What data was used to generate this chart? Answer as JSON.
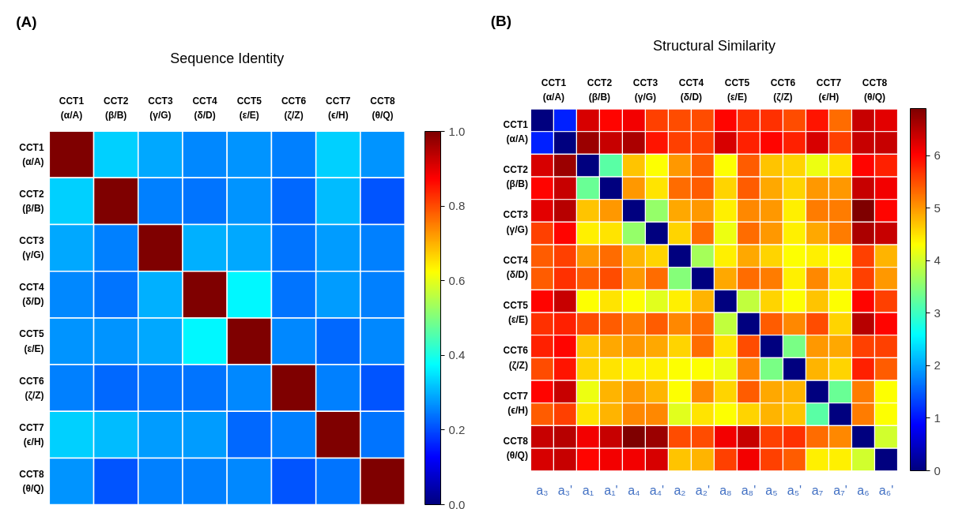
{
  "chart_data": [
    {
      "type": "heatmap",
      "title": "Sequence Identity",
      "annotations": [
        "(A)"
      ],
      "categories": [
        "CCT1\n(α/A)",
        "CCT2\n(β/B)",
        "CCT3\n(γ/G)",
        "CCT4\n(δ/D)",
        "CCT5\n(ε/E)",
        "CCT6\n(ζ/Z)",
        "CCT7\n(ϵ/H)",
        "CCT8\n(θ/Q)"
      ],
      "y_categories": [
        "CCT1\n(α/A)",
        "CCT2\n(β/B)",
        "CCT3\n(γ/G)",
        "CCT4\n(δ/D)",
        "CCT5\n(ε/E)",
        "CCT6\n(ζ/Z)",
        "CCT7\n(ϵ/H)",
        "CCT8\n(θ/Q)"
      ],
      "cells": [
        [
          1.0,
          0.33,
          0.29,
          0.26,
          0.27,
          0.25,
          0.33,
          0.27
        ],
        [
          0.33,
          1.0,
          0.25,
          0.24,
          0.27,
          0.23,
          0.31,
          0.21
        ],
        [
          0.29,
          0.25,
          1.0,
          0.3,
          0.29,
          0.24,
          0.28,
          0.25
        ],
        [
          0.26,
          0.24,
          0.3,
          1.0,
          0.37,
          0.24,
          0.28,
          0.25
        ],
        [
          0.27,
          0.27,
          0.29,
          0.37,
          1.0,
          0.26,
          0.23,
          0.26
        ],
        [
          0.25,
          0.23,
          0.24,
          0.24,
          0.26,
          1.0,
          0.25,
          0.21
        ],
        [
          0.33,
          0.31,
          0.28,
          0.28,
          0.23,
          0.25,
          1.0,
          0.24
        ],
        [
          0.27,
          0.21,
          0.25,
          0.25,
          0.26,
          0.21,
          0.24,
          1.0
        ]
      ],
      "clim": [
        0,
        1
      ],
      "cticks": [
        {
          "value": 0,
          "label": "0.0"
        },
        {
          "value": 0.2,
          "label": "0.2"
        },
        {
          "value": 0.4,
          "label": "0.4"
        },
        {
          "value": 0.6,
          "label": "0.6"
        },
        {
          "value": 0.8,
          "label": "0.8"
        },
        {
          "value": 1,
          "label": "1.0"
        }
      ]
    },
    {
      "type": "heatmap",
      "title": "Structural Similarity",
      "annotations": [
        "(B)",
        "CCT1\n(α/A)",
        "CCT2\n(β/B)",
        "CCT3\n(γ/G)",
        "CCT4\n(δ/D)",
        "CCT5\n(ε/E)",
        "CCT6\n(ζ/Z)",
        "CCT7\n(ϵ/H)",
        "CCT8\n(θ/Q)",
        "CCT1\n(α/A)",
        "CCT2\n(β/B)",
        "CCT3\n(γ/G)",
        "CCT4\n(δ/D)",
        "CCT5\n(ε/E)",
        "CCT6\n(ζ/Z)",
        "CCT7\n(ϵ/H)",
        "CCT8\n(θ/Q)"
      ],
      "categories": [
        "a₃",
        "a₃'",
        "a₁",
        "a₁'",
        "a₄",
        "a₄'",
        "a₂",
        "a₂'",
        "a₈",
        "a₈'",
        "a₅",
        "a₅'",
        "a₇",
        "a₇'",
        "a₆",
        "a₆'"
      ],
      "y_categories": [
        null,
        null,
        null,
        null,
        null,
        null,
        null,
        null,
        null,
        null,
        null,
        null,
        null,
        null,
        null,
        null
      ],
      "cells": [
        [
          0,
          1.1,
          6.3,
          6.0,
          6.1,
          5.6,
          5.5,
          5.5,
          6.0,
          5.7,
          5.7,
          5.5,
          5.9,
          5.3,
          6.4,
          6.2
        ],
        [
          1.1,
          0,
          6.7,
          6.4,
          6.6,
          5.9,
          5.6,
          5.6,
          6.3,
          5.8,
          6.0,
          5.8,
          6.3,
          5.6,
          6.4,
          6.4
        ],
        [
          6.3,
          6.7,
          0,
          3.2,
          4.7,
          4.3,
          5.0,
          5.4,
          4.3,
          5.4,
          4.7,
          4.6,
          4.2,
          4.5,
          6.0,
          5.8
        ],
        [
          6.0,
          6.4,
          3.3,
          0,
          5.0,
          4.5,
          5.3,
          5.4,
          4.6,
          5.4,
          4.9,
          4.6,
          5.0,
          5.0,
          6.4,
          6.1
        ],
        [
          6.2,
          6.5,
          4.7,
          5.0,
          0,
          3.6,
          4.9,
          5.0,
          4.4,
          5.1,
          5.0,
          4.4,
          5.2,
          5.2,
          6.9,
          6.0
        ],
        [
          5.6,
          6.0,
          4.4,
          4.5,
          3.6,
          0,
          4.6,
          5.3,
          4.2,
          5.3,
          5.0,
          4.4,
          4.9,
          5.2,
          6.6,
          6.4
        ],
        [
          5.4,
          5.6,
          5.0,
          5.3,
          4.8,
          4.6,
          0,
          3.7,
          4.4,
          4.9,
          4.6,
          4.3,
          4.4,
          4.3,
          5.6,
          4.8
        ],
        [
          5.4,
          5.7,
          5.4,
          5.5,
          5.0,
          5.3,
          3.5,
          0,
          4.9,
          5.3,
          5.2,
          4.4,
          5.1,
          4.5,
          5.6,
          5.0
        ],
        [
          6.0,
          6.4,
          4.3,
          4.5,
          4.3,
          4.1,
          4.4,
          4.8,
          0,
          3.9,
          4.6,
          4.3,
          4.7,
          4.3,
          6.0,
          5.6
        ],
        [
          5.7,
          5.8,
          5.5,
          5.4,
          5.2,
          5.4,
          5.1,
          5.3,
          3.9,
          0,
          5.4,
          5.1,
          5.5,
          4.6,
          6.5,
          6.0
        ],
        [
          5.8,
          6.0,
          4.7,
          4.9,
          5.0,
          4.9,
          4.6,
          5.3,
          4.5,
          5.5,
          0,
          3.4,
          5.0,
          4.9,
          5.6,
          5.6
        ],
        [
          5.5,
          5.9,
          4.6,
          4.5,
          4.4,
          4.4,
          4.3,
          4.3,
          4.2,
          5.1,
          3.4,
          0,
          4.8,
          4.6,
          5.8,
          5.4
        ],
        [
          6.0,
          6.4,
          4.2,
          4.8,
          5.0,
          4.8,
          4.3,
          5.1,
          4.6,
          5.4,
          4.9,
          4.8,
          0,
          3.3,
          5.2,
          4.3
        ],
        [
          5.4,
          5.6,
          4.5,
          4.8,
          5.1,
          5.1,
          4.1,
          4.5,
          4.3,
          4.6,
          4.8,
          4.7,
          3.2,
          0,
          5.2,
          4.3
        ],
        [
          6.4,
          6.5,
          6.1,
          6.4,
          6.9,
          6.7,
          5.5,
          5.5,
          6.1,
          6.4,
          5.6,
          5.7,
          5.3,
          5.1,
          0,
          4.0
        ],
        [
          6.3,
          6.4,
          6.0,
          6.1,
          6.1,
          6.3,
          4.7,
          4.8,
          5.6,
          6.1,
          5.6,
          5.4,
          4.4,
          4.4,
          4.0,
          0
        ]
      ],
      "clim": [
        0,
        6.9
      ],
      "cticks": [
        0,
        1,
        2,
        3,
        4,
        5,
        6
      ]
    }
  ]
}
